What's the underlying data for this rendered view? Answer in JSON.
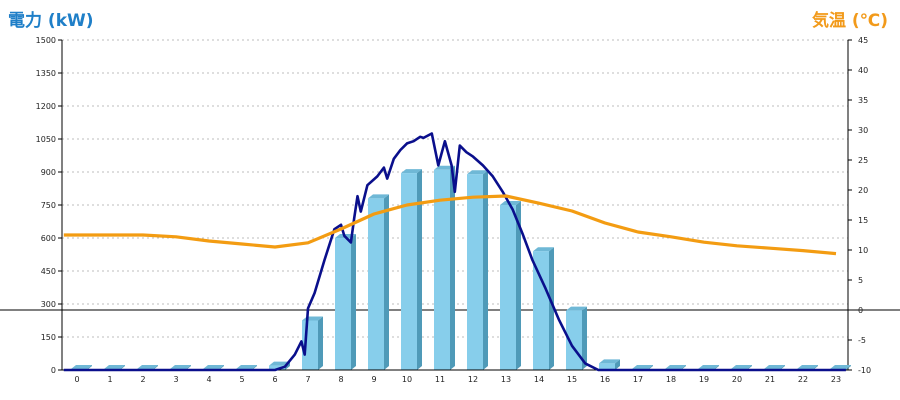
{
  "colors": {
    "left_axis_title": "#1f7fc8",
    "right_axis_title": "#f29a1a",
    "power_line": "#0a0f8c",
    "temperature_line": "#f39c12",
    "bar_front": "#87ceeb",
    "bar_side": "#4f9ab8",
    "bar_top": "#6fb8d6",
    "zero_line": "#000000",
    "grid": "#bdbdbd"
  },
  "chart_data": {
    "type": "bar",
    "ylabel": "電力 (kW)",
    "y2label": "気温 (℃)",
    "categories": [
      "0",
      "1",
      "2",
      "3",
      "4",
      "5",
      "6",
      "7",
      "8",
      "9",
      "10",
      "11",
      "12",
      "13",
      "14",
      "15",
      "16",
      "17",
      "18",
      "19",
      "20",
      "21",
      "22",
      "23"
    ],
    "ylim": [
      0,
      1500
    ],
    "y2lim": [
      -10,
      45
    ],
    "y_ticks": [
      "0",
      "150",
      "300",
      "450",
      "600",
      "750",
      "900",
      "1050",
      "1200",
      "1350",
      "1500"
    ],
    "y2_ticks": [
      "-10",
      "-5",
      "0",
      "5",
      "10",
      "15",
      "20",
      "25",
      "30",
      "35",
      "40",
      "45"
    ],
    "grid": true,
    "series": [
      {
        "type": "bar",
        "axis": "left",
        "values": [
          0,
          0,
          0,
          0,
          0,
          0,
          20,
          225,
          600,
          780,
          895,
          910,
          890,
          750,
          540,
          270,
          30,
          0,
          0,
          0,
          0,
          0,
          0,
          0
        ]
      },
      {
        "type": "line",
        "axis": "left",
        "points": [
          [
            -0.4,
            0
          ],
          [
            6,
            0
          ],
          [
            6.3,
            15
          ],
          [
            6.6,
            70
          ],
          [
            6.8,
            130
          ],
          [
            6.9,
            70
          ],
          [
            7,
            280
          ],
          [
            7.2,
            350
          ],
          [
            7.5,
            500
          ],
          [
            7.8,
            640
          ],
          [
            8,
            660
          ],
          [
            8.1,
            610
          ],
          [
            8.3,
            580
          ],
          [
            8.4,
            690
          ],
          [
            8.5,
            790
          ],
          [
            8.6,
            720
          ],
          [
            8.8,
            840
          ],
          [
            9.1,
            880
          ],
          [
            9.3,
            920
          ],
          [
            9.4,
            870
          ],
          [
            9.6,
            960
          ],
          [
            9.8,
            1000
          ],
          [
            10,
            1030
          ],
          [
            10.2,
            1040
          ],
          [
            10.4,
            1060
          ],
          [
            10.5,
            1055
          ],
          [
            10.75,
            1075
          ],
          [
            10.95,
            930
          ],
          [
            11.15,
            1040
          ],
          [
            11.35,
            930
          ],
          [
            11.45,
            810
          ],
          [
            11.6,
            1020
          ],
          [
            11.8,
            990
          ],
          [
            12,
            970
          ],
          [
            12.3,
            930
          ],
          [
            12.6,
            880
          ],
          [
            12.9,
            810
          ],
          [
            13.2,
            730
          ],
          [
            13.5,
            620
          ],
          [
            13.8,
            500
          ],
          [
            14.2,
            370
          ],
          [
            14.6,
            230
          ],
          [
            15,
            110
          ],
          [
            15.4,
            30
          ],
          [
            15.8,
            0
          ],
          [
            23.3,
            0
          ]
        ]
      },
      {
        "type": "line",
        "axis": "right",
        "points": [
          [
            -0.4,
            12.5
          ],
          [
            0,
            12.5
          ],
          [
            1,
            12.5
          ],
          [
            2,
            12.5
          ],
          [
            3,
            12.2
          ],
          [
            4,
            11.5
          ],
          [
            5,
            11.0
          ],
          [
            6,
            10.5
          ],
          [
            7,
            11.2
          ],
          [
            8,
            13.5
          ],
          [
            9,
            16.0
          ],
          [
            10,
            17.5
          ],
          [
            11,
            18.3
          ],
          [
            12,
            18.8
          ],
          [
            13,
            19.0
          ],
          [
            14,
            17.8
          ],
          [
            15,
            16.5
          ],
          [
            16,
            14.5
          ],
          [
            17,
            13.0
          ],
          [
            18,
            12.2
          ],
          [
            19,
            11.3
          ],
          [
            20,
            10.7
          ],
          [
            21,
            10.3
          ],
          [
            22,
            9.9
          ],
          [
            23,
            9.4
          ]
        ]
      }
    ]
  }
}
